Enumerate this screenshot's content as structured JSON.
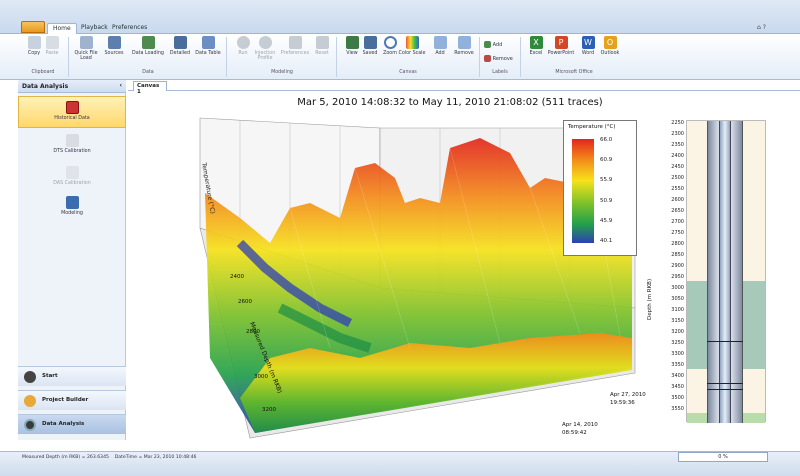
{
  "tabs": [
    "Home",
    "Playback",
    "Preferences"
  ],
  "ribbon": {
    "groups": [
      {
        "label": "Clipboard",
        "buttons": [
          {
            "label": "Copy"
          },
          {
            "label": "Paste",
            "disabled": true
          }
        ]
      },
      {
        "label": "Data",
        "buttons": [
          {
            "label": "Quick File Load"
          },
          {
            "label": "Sources"
          },
          {
            "label": "Data Loading"
          },
          {
            "label": "Detailed"
          },
          {
            "label": "Data Table"
          }
        ]
      },
      {
        "label": "Modeling",
        "buttons": [
          {
            "label": "Run",
            "disabled": true
          },
          {
            "label": "Injection Profile",
            "disabled": true
          },
          {
            "label": "Preferences",
            "disabled": true
          },
          {
            "label": "Reset",
            "disabled": true
          }
        ]
      },
      {
        "label": "Canvas",
        "buttons": [
          {
            "label": "View"
          },
          {
            "label": "Saved"
          },
          {
            "label": "Zoom"
          },
          {
            "label": "Color Scale"
          },
          {
            "label": "Add"
          },
          {
            "label": "Remove"
          }
        ]
      },
      {
        "label": "Labels",
        "buttons": [
          {
            "label": "Add"
          },
          {
            "label": "Remove"
          }
        ]
      },
      {
        "label": "Microsoft Office",
        "buttons": [
          {
            "label": "Excel"
          },
          {
            "label": "PowerPoint"
          },
          {
            "label": "Word"
          },
          {
            "label": "Outlook"
          }
        ]
      }
    ]
  },
  "sidebar": {
    "title": "Data Analysis",
    "items": [
      {
        "label": "Historical Data",
        "selected": true
      },
      {
        "label": "DTS Calibration"
      },
      {
        "label": "DAS Calibration",
        "disabled": true
      },
      {
        "label": "Modeling"
      }
    ],
    "nav": [
      {
        "label": "Start"
      },
      {
        "label": "Project Builder"
      },
      {
        "label": "Data Analysis",
        "selected": true
      }
    ]
  },
  "canvas_tab": "Canvas 1",
  "plot": {
    "title": "Mar 5, 2010 14:08:32 to May 11, 2010 21:08:02 (511 traces)",
    "legend_title": "Temperature (°C)",
    "legend_ticks": [
      "66.0",
      "60.9",
      "55.9",
      "50.9",
      "45.9",
      "40.1"
    ],
    "y_axis_label": "Measured Depth (m RKB)",
    "left_axis_label": "Temperature (°C)",
    "y_ticks": [
      "2400",
      "2600",
      "2800",
      "3000",
      "3200"
    ],
    "time_labels": [
      {
        "line1": "Apr 14, 2010",
        "line2": "08:59:42"
      },
      {
        "line1": "Apr 27, 2010",
        "line2": "19:59:36"
      }
    ]
  },
  "wellbore": {
    "axis_label": "Depth (m RKB)",
    "ticks": [
      "2250",
      "2300",
      "2350",
      "2400",
      "2450",
      "2500",
      "2550",
      "2600",
      "2650",
      "2700",
      "2750",
      "2800",
      "2850",
      "2900",
      "2950",
      "3000",
      "3050",
      "3100",
      "3150",
      "3200",
      "3250",
      "3300",
      "3350",
      "3400",
      "3450",
      "3500",
      "3550"
    ]
  },
  "status": {
    "depth": "Measured Depth (m RKB) = 263.6345",
    "datetime": "DateTime = Mar 23, 2010 10:48:46",
    "progress": "0 %"
  },
  "colors": {
    "legend_top": "#e8231c",
    "legend_bottom": "#1c2fb7"
  }
}
